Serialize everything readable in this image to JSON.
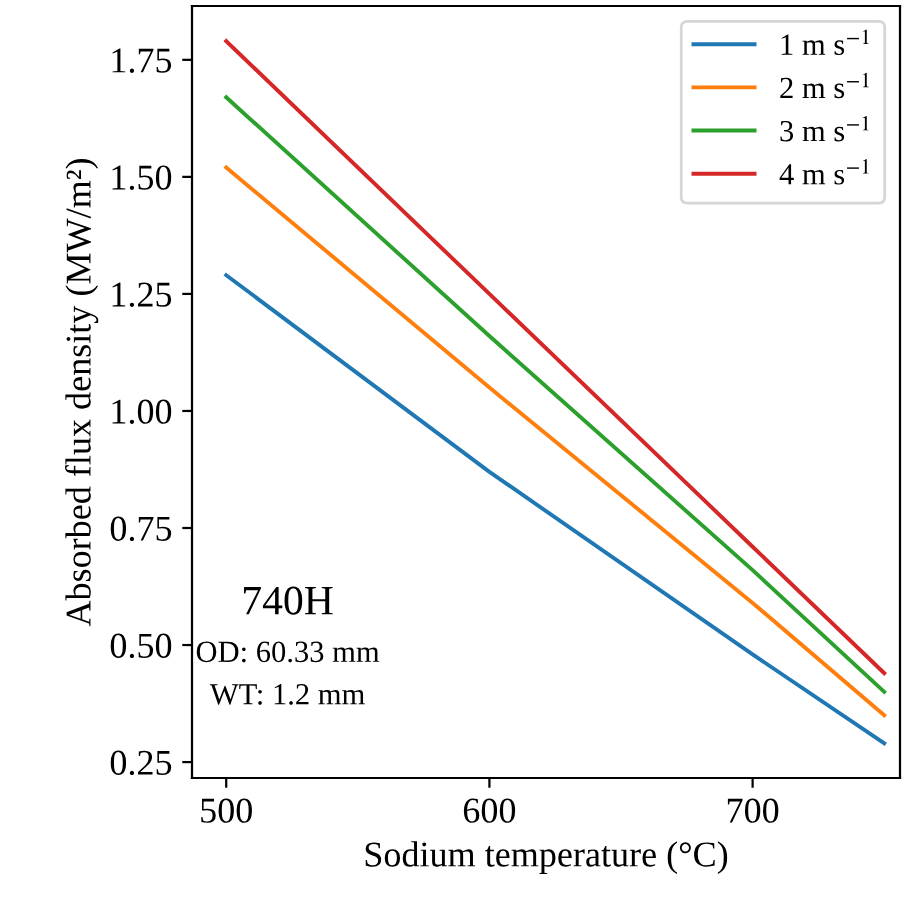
{
  "chart_data": {
    "type": "line",
    "x": [
      500,
      600,
      700,
      750
    ],
    "series": [
      {
        "name": "1 m s$^{−1}$",
        "color": "#1f77b4",
        "values": [
          1.29,
          0.87,
          0.48,
          0.29
        ]
      },
      {
        "name": "2 m s$^{−1}$",
        "color": "#ff7f0e",
        "values": [
          1.52,
          1.05,
          0.59,
          0.35
        ]
      },
      {
        "name": "3 m s$^{−1}$",
        "color": "#2ca02c",
        "values": [
          1.67,
          1.16,
          0.66,
          0.4
        ]
      },
      {
        "name": "4 m s$^{−1}$",
        "color": "#d62728",
        "values": [
          1.79,
          1.25,
          0.71,
          0.44
        ]
      }
    ],
    "xlabel": "Sodium temperature (°C)",
    "ylabel": "Absorbed flux density (MW/m²)",
    "xlim": [
      487,
      756
    ],
    "ylim": [
      0.216,
      1.865
    ],
    "xticks": [
      500,
      600,
      700
    ],
    "yticks": [
      {
        "value": 0.25,
        "label": "0.25"
      },
      {
        "value": 0.5,
        "label": "0.50"
      },
      {
        "value": 0.75,
        "label": "0.75"
      },
      {
        "value": 1.0,
        "label": "1.00"
      },
      {
        "value": 1.25,
        "label": "1.25"
      },
      {
        "value": 1.5,
        "label": "1.50"
      },
      {
        "value": 1.75,
        "label": "1.75"
      }
    ],
    "annotations": [
      "740H",
      "OD: 60.33 mm",
      "WT: 1.2 mm"
    ],
    "legend": "top right",
    "grid": false,
    "marker": "none",
    "line_style": "solid"
  }
}
